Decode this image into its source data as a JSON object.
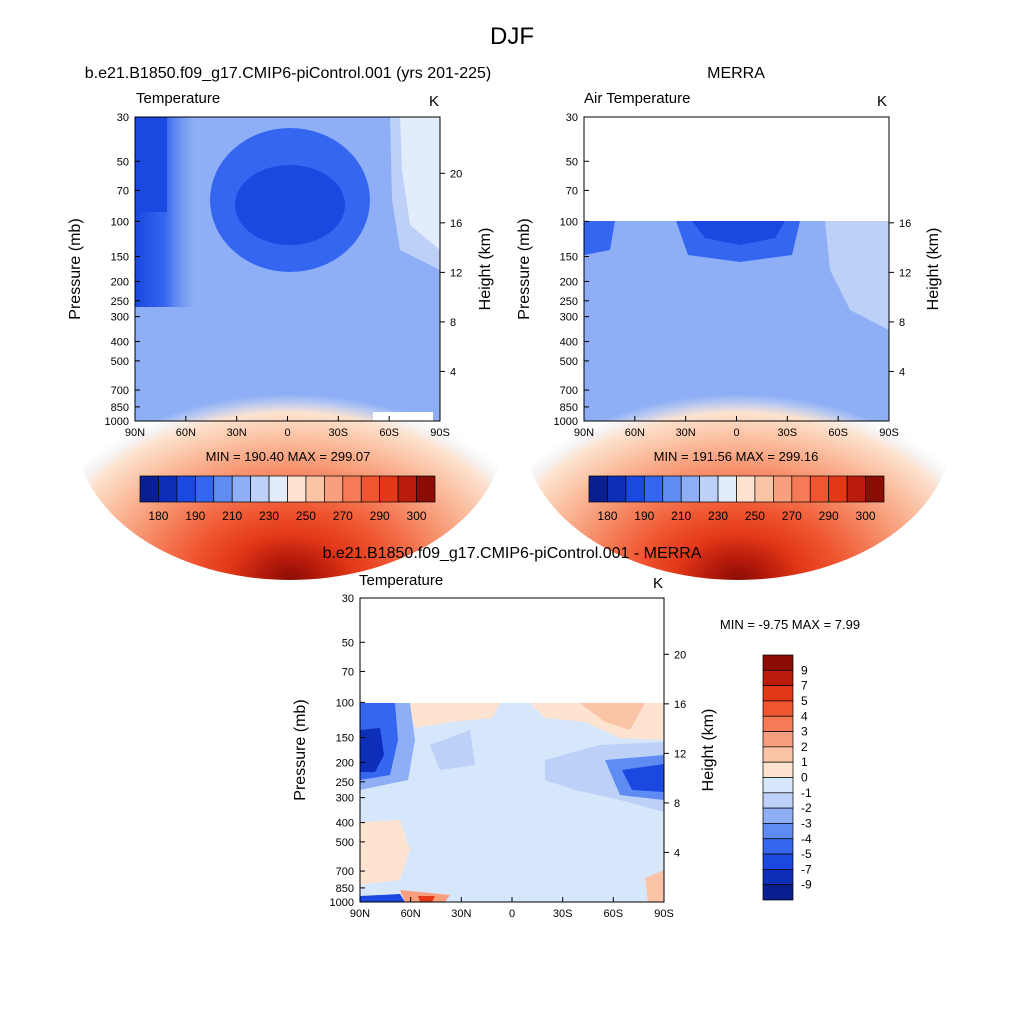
{
  "figure_title": "DJF",
  "panels": [
    {
      "id": "model",
      "title": "b.e21.B1850.f09_g17.CMIP6-piControl.001 (yrs 201-225)",
      "field_label": "Temperature",
      "units": "K",
      "stats": "MIN = 190.40  MAX = 299.07"
    },
    {
      "id": "obs",
      "title": "MERRA",
      "field_label": "Air Temperature",
      "units": "K",
      "stats": "MIN = 191.56  MAX = 299.16"
    },
    {
      "id": "diff",
      "title": "b.e21.B1850.f09_g17.CMIP6-piControl.001 - MERRA",
      "field_label": "Temperature",
      "units": "K",
      "stats": "MIN =  -9.75  MAX =   7.99"
    }
  ],
  "chart_data": {
    "type": "heatmap",
    "description_kind": "zonal-mean pressure-latitude contour plots",
    "x_axis": {
      "ticks": [
        "90N",
        "60N",
        "30N",
        "0",
        "30S",
        "60S",
        "90S"
      ],
      "range": [
        90,
        -90
      ],
      "units": "latitude"
    },
    "y_left_axis": {
      "label": "Pressure (mb)",
      "ticks": [
        30,
        50,
        70,
        100,
        150,
        200,
        250,
        300,
        400,
        500,
        700,
        850,
        1000
      ],
      "range": [
        1000,
        30
      ],
      "scale": "log"
    },
    "y_right_axis": {
      "label": "Height (km)",
      "ticks": [
        4,
        8,
        12,
        16,
        20
      ]
    },
    "abs_colorbar": {
      "labels": [
        "180",
        "190",
        "210",
        "230",
        "250",
        "270",
        "290",
        "300"
      ],
      "colors": [
        "#0a1f8f",
        "#0d2eb8",
        "#1a48e0",
        "#3566f0",
        "#5f8cf2",
        "#8eaef5",
        "#bcd0f8",
        "#e2ecfb",
        "#fde3d0",
        "#fbc4a6",
        "#f8a07d",
        "#f47b55",
        "#ef5530",
        "#e23818",
        "#b91c0c",
        "#8a0c04"
      ]
    },
    "diff_colorbar": {
      "labels": [
        "9",
        "7",
        "5",
        "4",
        "3",
        "2",
        "1",
        "0",
        "-1",
        "-2",
        "-3",
        "-4",
        "-5",
        "-7",
        "-9"
      ],
      "colors": [
        "#8a0c04",
        "#b91c0c",
        "#e23818",
        "#ef5530",
        "#f47b55",
        "#f8a07d",
        "#fbc4a6",
        "#fde3d0",
        "#d6e6fb",
        "#bcd0f8",
        "#8eaef5",
        "#5f8cf2",
        "#3566f0",
        "#1a48e0",
        "#0d2eb8",
        "#0a1f8f"
      ]
    },
    "series": [
      {
        "name": "Model temperature (K)",
        "min": 190.4,
        "max": 299.07,
        "top_pressure": 30
      },
      {
        "name": "MERRA air temperature (K)",
        "min": 191.56,
        "max": 299.16,
        "top_pressure": 100
      },
      {
        "name": "Model - MERRA (K)",
        "min": -9.75,
        "max": 7.99,
        "top_pressure": 100
      }
    ]
  }
}
